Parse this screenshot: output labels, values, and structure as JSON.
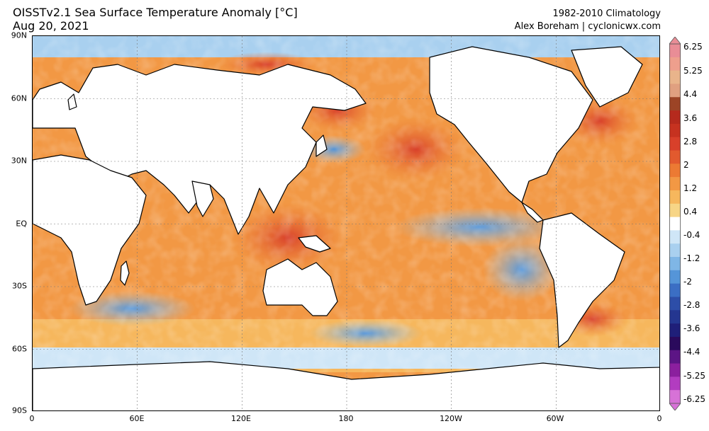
{
  "header": {
    "title": "OISSTv2.1 Sea Surface Temperature Anomaly [°C]",
    "date": "Aug 20, 2021",
    "climatology": "1982-2010 Climatology",
    "credit": "Alex Boreham | cyclonicwx.com"
  },
  "map": {
    "lat_labels": [
      "90N",
      "60N",
      "30N",
      "EQ",
      "30S",
      "60S",
      "90S"
    ],
    "lon_labels": [
      "0",
      "60E",
      "120E",
      "180",
      "120W",
      "60W",
      "0"
    ]
  },
  "colorbar": {
    "labels": [
      "6.25",
      "5.25",
      "4.4",
      "3.6",
      "2.8",
      "2",
      "1.2",
      "0.4",
      "-0.4",
      "-1.2",
      "-2",
      "-2.8",
      "-3.6",
      "-4.4",
      "-5.25",
      "-6.25"
    ],
    "colors": [
      "#e98d96",
      "#ee9f8d",
      "#e9b48b",
      "#e0a080",
      "#9c4426",
      "#b52a1d",
      "#c63220",
      "#d8402a",
      "#e25a2e",
      "#ec7a33",
      "#f29844",
      "#f6b75d",
      "#f7d586",
      "#ffffff",
      "#cfe6f7",
      "#a9d0ef",
      "#7fb6e6",
      "#5595d8",
      "#3b6ec4",
      "#2d4ea8",
      "#243690",
      "#1f1f79",
      "#2a0a5c",
      "#5c1585",
      "#8b1f9e",
      "#b23cc0",
      "#d772d7"
    ]
  }
}
